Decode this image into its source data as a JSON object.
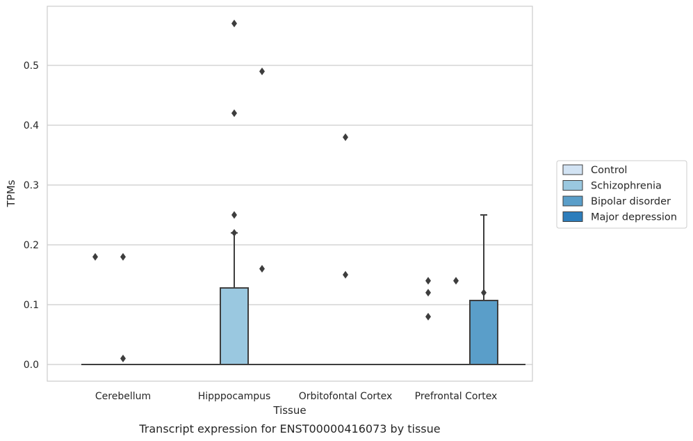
{
  "chart_data": {
    "type": "box",
    "caption": "Transcript expression for ENST00000416073 by tissue",
    "xlabel": "Tissue",
    "ylabel": "TPMs",
    "ylim": [
      -0.028,
      0.6
    ],
    "yticks": [
      0.0,
      0.1,
      0.2,
      0.3,
      0.4,
      0.5
    ],
    "ytick_labels": [
      "0.0",
      "0.1",
      "0.2",
      "0.3",
      "0.4",
      "0.5"
    ],
    "grid": true,
    "legend_placement": "center-right, outside plot",
    "categories": [
      "Cerebellum",
      "Hipppocampus",
      "Orbitofontal Cortex",
      "Prefrontal Cortex"
    ],
    "series": [
      {
        "name": "Control",
        "color": "#d2e3f3",
        "boxes": [
          {
            "q1": 0,
            "median": 0,
            "q3": 0,
            "whisker_low": 0,
            "whisker_high": 0,
            "outliers": [
              0.18
            ]
          },
          {
            "q1": 0,
            "median": 0,
            "q3": 0,
            "whisker_low": 0,
            "whisker_high": 0,
            "outliers": []
          },
          {
            "q1": 0,
            "median": 0,
            "q3": 0,
            "whisker_low": 0,
            "whisker_high": 0,
            "outliers": []
          },
          {
            "q1": 0,
            "median": 0,
            "q3": 0,
            "whisker_low": 0,
            "whisker_high": 0,
            "outliers": [
              0.08,
              0.12,
              0.14
            ]
          }
        ]
      },
      {
        "name": "Schizophrenia",
        "color": "#9ac8e0",
        "boxes": [
          {
            "q1": 0,
            "median": 0,
            "q3": 0,
            "whisker_low": 0,
            "whisker_high": 0,
            "outliers": [
              0.18,
              0.01
            ]
          },
          {
            "q1": 0,
            "median": 0,
            "q3": 0.128,
            "whisker_low": 0,
            "whisker_high": 0.22,
            "outliers": [
              0.42,
              0.57,
              0.25,
              0.22
            ]
          },
          {
            "q1": 0,
            "median": 0,
            "q3": 0,
            "whisker_low": 0,
            "whisker_high": 0,
            "outliers": [
              0.15,
              0.38
            ]
          },
          {
            "q1": 0,
            "median": 0,
            "q3": 0,
            "whisker_low": 0,
            "whisker_high": 0,
            "outliers": [
              0.14
            ]
          }
        ]
      },
      {
        "name": "Bipolar disorder",
        "color": "#5a9ec9",
        "boxes": [
          {
            "q1": 0,
            "median": 0,
            "q3": 0,
            "whisker_low": 0,
            "whisker_high": 0,
            "outliers": []
          },
          {
            "q1": 0,
            "median": 0,
            "q3": 0,
            "whisker_low": 0,
            "whisker_high": 0,
            "outliers": [
              0.49,
              0.16
            ]
          },
          {
            "q1": 0,
            "median": 0,
            "q3": 0,
            "whisker_low": 0,
            "whisker_high": 0,
            "outliers": []
          },
          {
            "q1": 0,
            "median": 0,
            "q3": 0.107,
            "whisker_low": 0,
            "whisker_high": 0.25,
            "outliers": [
              0.12
            ]
          }
        ]
      },
      {
        "name": "Major depression",
        "color": "#2d7dbb",
        "boxes": [
          {
            "q1": 0,
            "median": 0,
            "q3": 0,
            "whisker_low": 0,
            "whisker_high": 0,
            "outliers": []
          },
          {
            "q1": 0,
            "median": 0,
            "q3": 0,
            "whisker_low": 0,
            "whisker_high": 0,
            "outliers": []
          },
          {
            "q1": 0,
            "median": 0,
            "q3": 0,
            "whisker_low": 0,
            "whisker_high": 0,
            "outliers": []
          },
          {
            "q1": 0,
            "median": 0,
            "q3": 0,
            "whisker_low": 0,
            "whisker_high": 0,
            "outliers": []
          }
        ]
      }
    ],
    "colors": {
      "grid": "#cccccc",
      "frame": "#cccccc",
      "box_edge": "#3d3d3d",
      "outlier": "#3d3d3d"
    }
  }
}
